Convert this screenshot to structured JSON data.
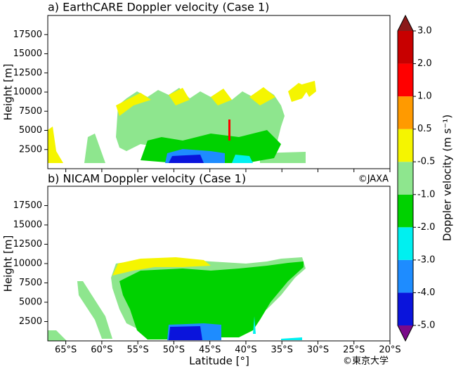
{
  "chart_data": {
    "type": "curtain",
    "panels": [
      {
        "title": "a) EarthCARE Doppler velocity (Case 1)",
        "annotation": "©JAXA"
      },
      {
        "title": "b) NICAM Doppler velocity (Case 1)",
        "annotation": "©東京大学"
      }
    ],
    "xlabel": "Latitude [°]",
    "ylabel": "Height [m]",
    "xlim": [
      -67.5,
      -20
    ],
    "xticks": [
      {
        "value": -65,
        "label": "65°S"
      },
      {
        "value": -60,
        "label": "60°S"
      },
      {
        "value": -55,
        "label": "55°S"
      },
      {
        "value": -50,
        "label": "50°S"
      },
      {
        "value": -45,
        "label": "45°S"
      },
      {
        "value": -40,
        "label": "40°S"
      },
      {
        "value": -35,
        "label": "35°S"
      },
      {
        "value": -30,
        "label": "30°S"
      },
      {
        "value": -25,
        "label": "25°S"
      },
      {
        "value": -20,
        "label": "20°S"
      }
    ],
    "ylim": [
      0,
      20000
    ],
    "yticks": [
      2500,
      5000,
      7500,
      10000,
      12500,
      15000,
      17500
    ],
    "colorbar": {
      "label": "Doppler velocity (m s⁻¹)",
      "levels": [
        {
          "value": -5,
          "label": "-5.0"
        },
        {
          "value": -4,
          "label": "-4.0"
        },
        {
          "value": -3,
          "label": "-3.0"
        },
        {
          "value": -2,
          "label": "-2.0"
        },
        {
          "value": -1,
          "label": "-1.0"
        },
        -0.5,
        0.5,
        {
          "value": 1,
          "label": "1.0"
        },
        {
          "value": 2,
          "label": "2.0"
        },
        {
          "value": 3,
          "label": "3.0"
        }
      ],
      "colors": [
        "#7a0a8a",
        "#0a14dc",
        "#1e8cff",
        "#00f0f0",
        "#00d200",
        "#8ee68e",
        "#f5f500",
        "#ff9a00",
        "#ff0000",
        "#c80000",
        "#8b1a1a"
      ]
    }
  }
}
